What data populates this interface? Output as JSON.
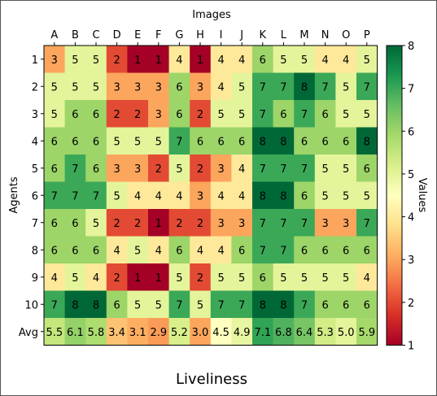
{
  "figure_title": "Liveliness",
  "chart_data": {
    "type": "heatmap",
    "xlabel": "Images",
    "ylabel": "Agents",
    "colorbar_label": "Values",
    "x_categories": [
      "A",
      "B",
      "C",
      "D",
      "E",
      "F",
      "G",
      "H",
      "I",
      "J",
      "K",
      "L",
      "M",
      "N",
      "O",
      "P"
    ],
    "y_categories": [
      "1",
      "2",
      "3",
      "4",
      "5",
      "6",
      "7",
      "8",
      "9",
      "10",
      "Avg"
    ],
    "values": [
      [
        3,
        5,
        5,
        2,
        1,
        1,
        4,
        1,
        4,
        4,
        6,
        5,
        5,
        4,
        4,
        5
      ],
      [
        5,
        5,
        5,
        3,
        3,
        3,
        6,
        3,
        4,
        5,
        7,
        7,
        8,
        7,
        5,
        7
      ],
      [
        5,
        6,
        6,
        2,
        2,
        3,
        6,
        2,
        5,
        5,
        7,
        6,
        7,
        6,
        5,
        5
      ],
      [
        6,
        6,
        6,
        5,
        5,
        5,
        7,
        6,
        6,
        6,
        8,
        8,
        6,
        6,
        6,
        8
      ],
      [
        6,
        7,
        6,
        3,
        3,
        2,
        5,
        2,
        3,
        4,
        7,
        7,
        7,
        5,
        5,
        6
      ],
      [
        7,
        7,
        7,
        5,
        4,
        4,
        4,
        3,
        4,
        4,
        8,
        8,
        6,
        5,
        5,
        5
      ],
      [
        6,
        6,
        5,
        2,
        2,
        1,
        2,
        2,
        3,
        3,
        7,
        7,
        7,
        3,
        3,
        7
      ],
      [
        6,
        6,
        6,
        4,
        5,
        4,
        6,
        4,
        4,
        6,
        7,
        7,
        6,
        6,
        6,
        6
      ],
      [
        4,
        5,
        4,
        2,
        1,
        1,
        5,
        2,
        5,
        5,
        6,
        5,
        5,
        5,
        5,
        4
      ],
      [
        7,
        8,
        8,
        6,
        5,
        5,
        7,
        5,
        7,
        7,
        8,
        8,
        7,
        6,
        6,
        6
      ],
      [
        5.5,
        6.1,
        5.8,
        3.4,
        3.1,
        2.9,
        5.2,
        3.0,
        4.5,
        4.9,
        7.1,
        6.8,
        6.4,
        5.3,
        5.0,
        5.9
      ]
    ],
    "value_range": [
      1,
      8
    ],
    "colorbar_ticks": [
      1,
      2,
      3,
      4,
      5,
      6,
      7,
      8
    ],
    "colormap": "RdYlGn",
    "grid": false
  }
}
